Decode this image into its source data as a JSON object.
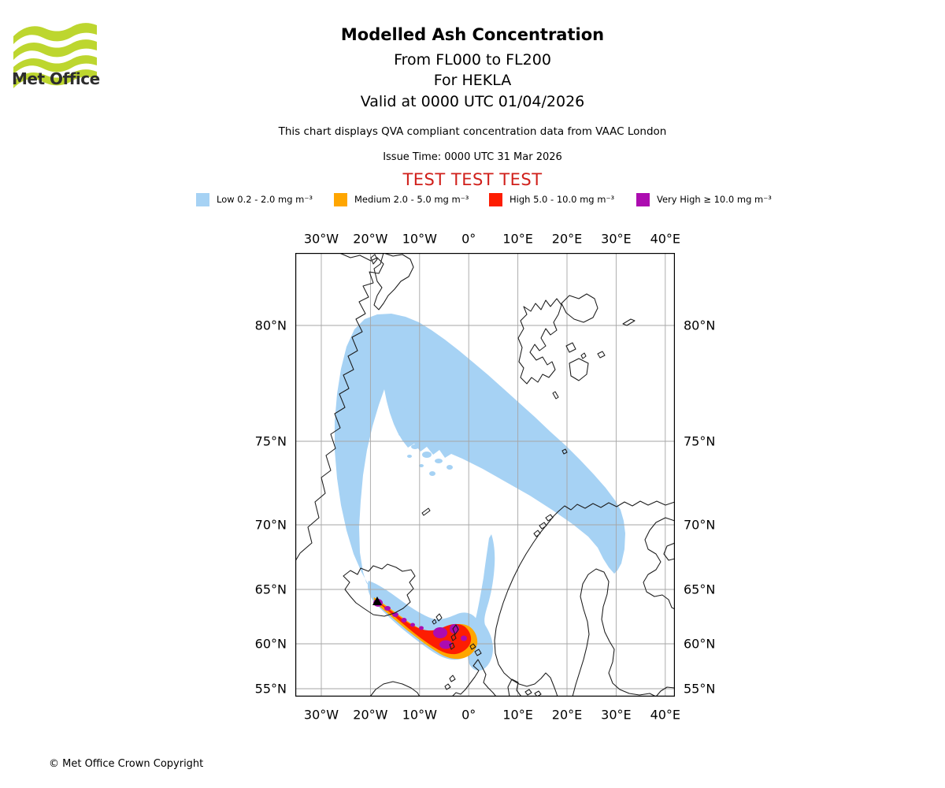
{
  "branding": {
    "logo_text": "Met Office",
    "logo_color": "#bdd62f"
  },
  "header": {
    "title": "Modelled Ash Concentration",
    "subtitle_fl": "From FL000 to FL200",
    "subtitle_volcano": "For HEKLA",
    "subtitle_valid": "Valid at 0000 UTC 01/04/2026",
    "description": "This chart displays QVA compliant concentration data from VAAC London",
    "issue_time": "Issue Time: 0000 UTC 31 Mar 2026",
    "test_banner": "TEST TEST TEST",
    "test_banner_color": "#d01f1a"
  },
  "legend": {
    "items": [
      {
        "name": "low",
        "label": "Low 0.2 - 2.0 mg m⁻³",
        "color": "#a6d2f4"
      },
      {
        "name": "medium",
        "label": "Medium 2.0 - 5.0 mg m⁻³",
        "color": "#ffa600"
      },
      {
        "name": "high",
        "label": "High 5.0 - 10.0 mg m⁻³",
        "color": "#fd1d02"
      },
      {
        "name": "very-high",
        "label": "Very High ≥ 10.0 mg m⁻³",
        "color": "#ac0cb0"
      }
    ]
  },
  "map": {
    "lon_labels": [
      "30°W",
      "20°W",
      "10°W",
      "0°",
      "10°E",
      "20°E",
      "30°E",
      "40°E"
    ],
    "lat_labels": [
      "80°N",
      "75°N",
      "70°N",
      "65°N",
      "60°N",
      "55°N"
    ]
  },
  "footer": {
    "copyright": "© Met Office Crown Copyright"
  },
  "chart_data": {
    "type": "map",
    "title": "Modelled Ash Concentration",
    "flight_levels": "FL000 to FL200",
    "volcano": "HEKLA",
    "valid_time": "0000 UTC 01/04/2026",
    "issue_time": "0000 UTC 31 Mar 2026",
    "data_source": "QVA compliant concentration data from VAAC London",
    "status": "TEST TEST TEST",
    "lon_ticks": [
      "30W",
      "20W",
      "10W",
      "0",
      "10E",
      "20E",
      "30E",
      "40E"
    ],
    "lat_ticks": [
      "80N",
      "75N",
      "70N",
      "65N",
      "60N",
      "55N"
    ],
    "concentration_bands": [
      {
        "level": "Low",
        "range": "0.2 - 2.0 mg m-3"
      },
      {
        "level": "Medium",
        "range": "2.0 - 5.0 mg m-3"
      },
      {
        "level": "High",
        "range": "5.0 - 10.0 mg m-3"
      },
      {
        "level": "Very High",
        "range": ">= 10.0 mg m-3"
      }
    ],
    "depiction": "Ash plume loops from Hekla (Iceland) north along the east Greenland coast to ~80N, sweeps southeast across the Norwegian/Barents Sea to northern Norway (~70N 25E); a dense Medium/High/Very-High filament extends southeast from Hekla to a concentrated maximum near Shetland (~60-61N, 0-5W)."
  }
}
